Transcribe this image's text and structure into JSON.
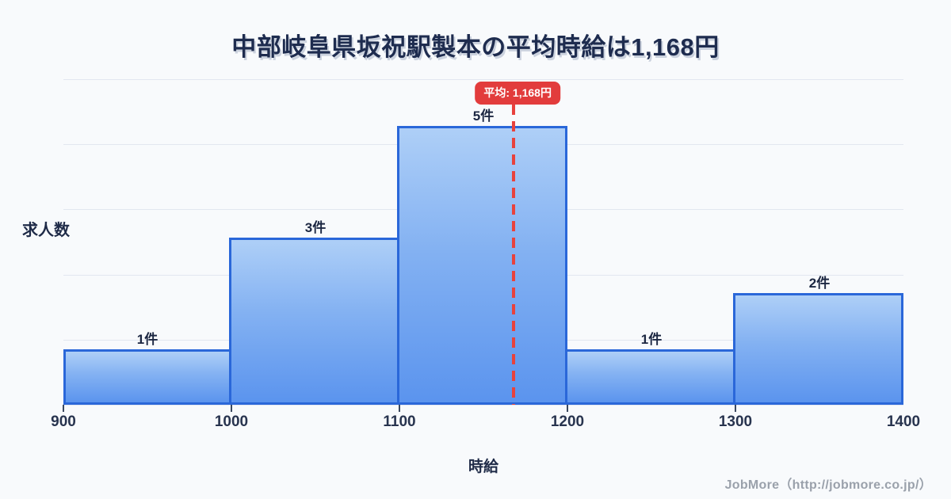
{
  "header": {
    "title": "中部岐阜県坂祝駅製本の平均時給は1,168円"
  },
  "chart_data": {
    "type": "bar",
    "subtype": "histogram",
    "title": "中部岐阜県坂祝駅製本の平均時給は1,168円",
    "xlabel": "時給",
    "ylabel": "求人数",
    "x_edges": [
      900,
      1000,
      1100,
      1200,
      1300,
      1400
    ],
    "categories": [
      "900-1000",
      "1000-1100",
      "1100-1200",
      "1200-1300",
      "1300-1400"
    ],
    "values": [
      1,
      3,
      5,
      1,
      2
    ],
    "bar_labels": [
      "1件",
      "3件",
      "5件",
      "1件",
      "2件"
    ],
    "ylim": [
      0,
      5
    ],
    "grid": "horizontal",
    "gridline_count": 6,
    "average": {
      "value": 1168,
      "badge_label": "平均: 1,168円"
    },
    "colors": {
      "bar_fill_top": "#aecff7",
      "bar_fill_bottom": "#5b94ee",
      "bar_border": "#2a67d9",
      "avg_line": "#e8423d",
      "badge_bg": "#e23c3c",
      "badge_text": "#ffffff",
      "gridline": "#e2e7f0",
      "title_text": "#1e2c4f",
      "axis_text": "#28344f",
      "background": "#f8fafc",
      "footer_text": "#9aa1ab"
    }
  },
  "footer": {
    "credit": "JobMore（http://jobmore.co.jp/）"
  }
}
